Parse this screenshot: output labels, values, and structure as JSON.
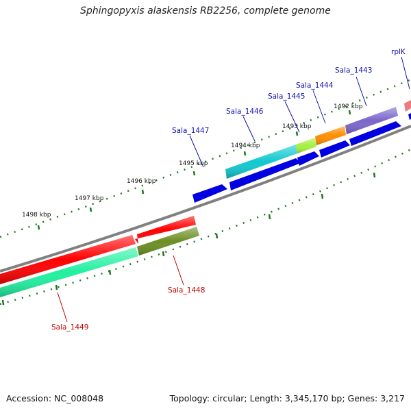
{
  "title": "Sphingopyxis alaskensis RB2256, complete genome",
  "footer": {
    "accession": "Accession: NC_008048",
    "stats": "Topology: circular; Length: 3,345,170 bp; Genes: 3,217"
  },
  "colors": {
    "backbone": "#808080",
    "tick": "#1a7a1a",
    "forward_label": "#1010b0",
    "reverse_label": "#c00000",
    "cds_forward": "#0000e0"
  },
  "ticks": [
    "1492 kbp",
    "1493 kbp",
    "1494 kbp",
    "1495 kbp",
    "1496 kbp",
    "1497 kbp",
    "1498 kbp"
  ],
  "genes": [
    {
      "id": "g1443",
      "label": "Sala_1443",
      "strand": "forward",
      "color": "#7a66cc"
    },
    {
      "id": "g1444",
      "label": "Sala_1444",
      "strand": "forward",
      "color": "#ff8c00"
    },
    {
      "id": "g1445",
      "label": "Sala_1445",
      "strand": "forward",
      "color": "#a6f040"
    },
    {
      "id": "g1446",
      "label": "Sala_1446",
      "strand": "forward",
      "color": "#10c8d0"
    },
    {
      "id": "g1447",
      "label": "Sala_1447",
      "strand": "forward",
      "color": "#0000e0"
    },
    {
      "id": "grplK",
      "label": "rplK",
      "strand": "forward",
      "color": "#e87a80"
    },
    {
      "id": "g1448",
      "label": "Sala_1448",
      "strand": "reverse",
      "color": "#6b8e23"
    },
    {
      "id": "g1449",
      "label": "Sala_1449",
      "strand": "reverse",
      "color": "#ff0000"
    }
  ]
}
